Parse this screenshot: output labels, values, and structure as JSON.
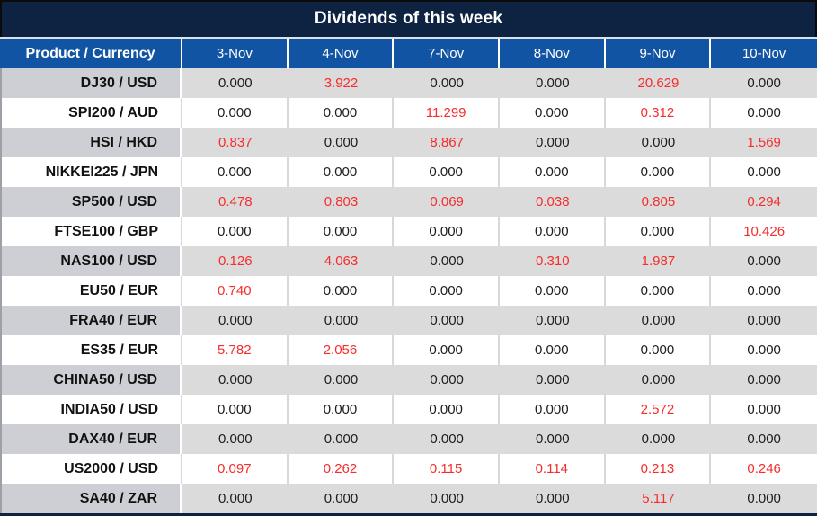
{
  "title": "Dividends of this week",
  "chart_data": {
    "type": "table",
    "title": "Dividends of this week",
    "product_header": "Product / Currency",
    "columns": [
      "3-Nov",
      "4-Nov",
      "7-Nov",
      "8-Nov",
      "9-Nov",
      "10-Nov"
    ],
    "rows": [
      {
        "product": "DJ30 / USD",
        "values": [
          "0.000",
          "3.922",
          "0.000",
          "0.000",
          "20.629",
          "0.000"
        ]
      },
      {
        "product": "SPI200 / AUD",
        "values": [
          "0.000",
          "0.000",
          "11.299",
          "0.000",
          "0.312",
          "0.000"
        ]
      },
      {
        "product": "HSI / HKD",
        "values": [
          "0.837",
          "0.000",
          "8.867",
          "0.000",
          "0.000",
          "1.569"
        ]
      },
      {
        "product": "NIKKEI225 / JPN",
        "values": [
          "0.000",
          "0.000",
          "0.000",
          "0.000",
          "0.000",
          "0.000"
        ]
      },
      {
        "product": "SP500 / USD",
        "values": [
          "0.478",
          "0.803",
          "0.069",
          "0.038",
          "0.805",
          "0.294"
        ]
      },
      {
        "product": "FTSE100 / GBP",
        "values": [
          "0.000",
          "0.000",
          "0.000",
          "0.000",
          "0.000",
          "10.426"
        ]
      },
      {
        "product": "NAS100 / USD",
        "values": [
          "0.126",
          "4.063",
          "0.000",
          "0.310",
          "1.987",
          "0.000"
        ]
      },
      {
        "product": "EU50 / EUR",
        "values": [
          "0.740",
          "0.000",
          "0.000",
          "0.000",
          "0.000",
          "0.000"
        ]
      },
      {
        "product": "FRA40 / EUR",
        "values": [
          "0.000",
          "0.000",
          "0.000",
          "0.000",
          "0.000",
          "0.000"
        ]
      },
      {
        "product": "ES35 / EUR",
        "values": [
          "5.782",
          "2.056",
          "0.000",
          "0.000",
          "0.000",
          "0.000"
        ]
      },
      {
        "product": "CHINA50 / USD",
        "values": [
          "0.000",
          "0.000",
          "0.000",
          "0.000",
          "0.000",
          "0.000"
        ]
      },
      {
        "product": "INDIA50 / USD",
        "values": [
          "0.000",
          "0.000",
          "0.000",
          "0.000",
          "2.572",
          "0.000"
        ]
      },
      {
        "product": "DAX40 / EUR",
        "values": [
          "0.000",
          "0.000",
          "0.000",
          "0.000",
          "0.000",
          "0.000"
        ]
      },
      {
        "product": "US2000 / USD",
        "values": [
          "0.097",
          "0.262",
          "0.115",
          "0.114",
          "0.213",
          "0.246"
        ]
      },
      {
        "product": "SA40 / ZAR",
        "values": [
          "0.000",
          "0.000",
          "0.000",
          "0.000",
          "5.117",
          "0.000"
        ]
      }
    ]
  },
  "colors": {
    "title_bar_bg": "#0E2342",
    "header_bg": "#1254A4",
    "stripe_label_bg": "#CDCFD4",
    "stripe_value_bg": "#DBDBDB",
    "zero_value_color": "#1C1C1C",
    "nonzero_value_color": "#F72C2C"
  }
}
